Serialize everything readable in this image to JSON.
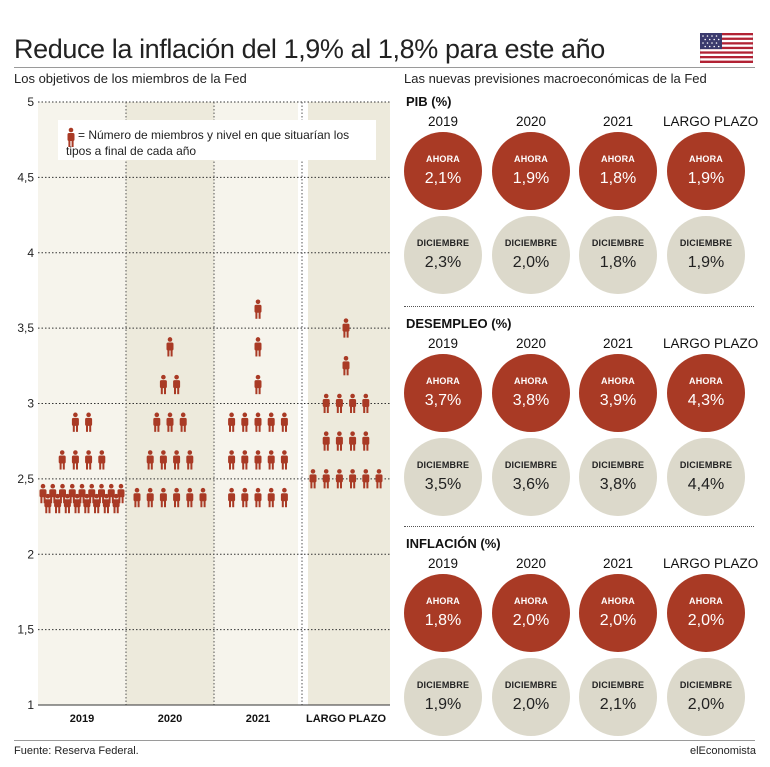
{
  "title": "Reduce la inflación del 1,9% al 1,8% para este año",
  "left_subtitle": "Los objetivos de los miembros de la Fed",
  "right_subtitle": "Las nuevas previsiones macroeconómicas de la Fed",
  "legend_text_1": "= Número de miembros y nivel en que situarían los",
  "legend_text_2": "tipos a final de cada año",
  "source": "Fuente: Reserva Federal.",
  "brand": "elEconomista",
  "colors": {
    "accent": "#a93a25",
    "neutral": "#dcd9cb",
    "band": "#edeadc",
    "band_light": "#f6f4ec"
  },
  "chart_data": [
    {
      "type": "scatter",
      "title": "Los objetivos de los miembros de la Fed",
      "yticks": [
        "5",
        "4,5",
        "4",
        "3,5",
        "3",
        "2,5",
        "2",
        "1,5",
        "1"
      ],
      "ylim": [
        1,
        5
      ],
      "categories": [
        "2019",
        "2020",
        "2021",
        "LARGO PLAZO"
      ],
      "dots": [
        {
          "category": "2019",
          "levels": [
            {
              "rate": 2.375,
              "count": 17
            },
            {
              "rate": 2.625,
              "count": 4
            },
            {
              "rate": 2.875,
              "count": 2
            }
          ]
        },
        {
          "category": "2020",
          "levels": [
            {
              "rate": 2.375,
              "count": 6
            },
            {
              "rate": 2.625,
              "count": 4
            },
            {
              "rate": 2.875,
              "count": 3
            },
            {
              "rate": 3.125,
              "count": 2
            },
            {
              "rate": 3.375,
              "count": 1
            }
          ]
        },
        {
          "category": "2021",
          "levels": [
            {
              "rate": 2.375,
              "count": 5
            },
            {
              "rate": 2.625,
              "count": 5
            },
            {
              "rate": 2.875,
              "count": 5
            },
            {
              "rate": 3.125,
              "count": 1
            },
            {
              "rate": 3.375,
              "count": 1
            },
            {
              "rate": 3.625,
              "count": 1
            }
          ]
        },
        {
          "category": "LARGO PLAZO",
          "levels": [
            {
              "rate": 2.5,
              "count": 6
            },
            {
              "rate": 2.75,
              "count": 4
            },
            {
              "rate": 3.0,
              "count": 4
            },
            {
              "rate": 3.25,
              "count": 1
            },
            {
              "rate": 3.5,
              "count": 1
            }
          ]
        }
      ]
    },
    {
      "type": "table",
      "title": "Las nuevas previsiones macroeconómicas de la Fed",
      "columns": [
        "2019",
        "2020",
        "2021",
        "LARGO PLAZO"
      ],
      "row_labels": {
        "now": "AHORA",
        "dec": "DICIEMBRE"
      },
      "sections": [
        {
          "name": "PIB (%)",
          "now": [
            "2,1%",
            "1,9%",
            "1,8%",
            "1,9%"
          ],
          "dec": [
            "2,3%",
            "2,0%",
            "1,8%",
            "1,9%"
          ]
        },
        {
          "name": "DESEMPLEO (%)",
          "now": [
            "3,7%",
            "3,8%",
            "3,9%",
            "4,3%"
          ],
          "dec": [
            "3,5%",
            "3,6%",
            "3,8%",
            "4,4%"
          ]
        },
        {
          "name": "INFLACIÓN (%)",
          "now": [
            "1,8%",
            "2,0%",
            "2,0%",
            "2,0%"
          ],
          "dec": [
            "1,9%",
            "2,0%",
            "2,1%",
            "2,0%"
          ]
        }
      ]
    }
  ]
}
